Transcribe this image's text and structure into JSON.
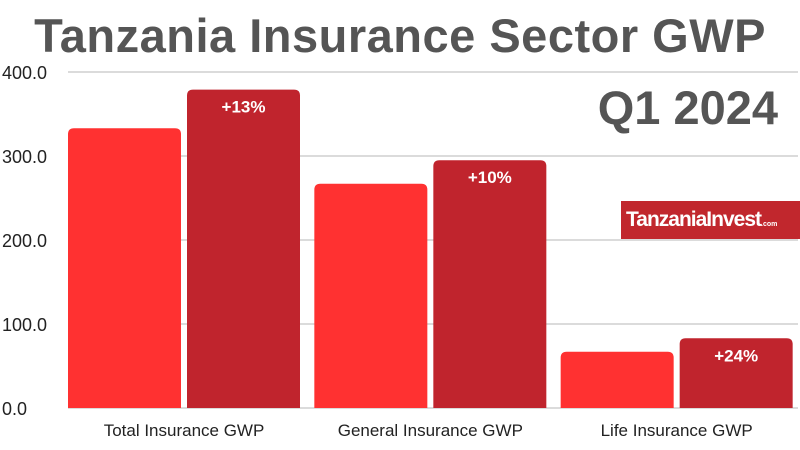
{
  "chart_data": {
    "type": "bar",
    "title": "Tanzania Insurance Sector GWP",
    "subtitle": "Q1 2024",
    "categories": [
      "Total Insurance GWP",
      "General Insurance GWP",
      "Life Insurance GWP"
    ],
    "series": [
      {
        "values": [
          333,
          267,
          67
        ],
        "color": "#ff3131"
      },
      {
        "values": [
          379,
          295,
          83
        ],
        "color": "#c0242d",
        "labels": [
          "+13%",
          "+10%",
          "+24%"
        ]
      }
    ],
    "yticks": [
      "0.0",
      "100.0",
      "200.0",
      "300.0",
      "400.0"
    ],
    "ylim": [
      0,
      400
    ],
    "grid": true,
    "xlabel": "",
    "ylabel": ""
  },
  "logo": {
    "text": "TanzaniaInvest",
    "suffix": ".com"
  }
}
